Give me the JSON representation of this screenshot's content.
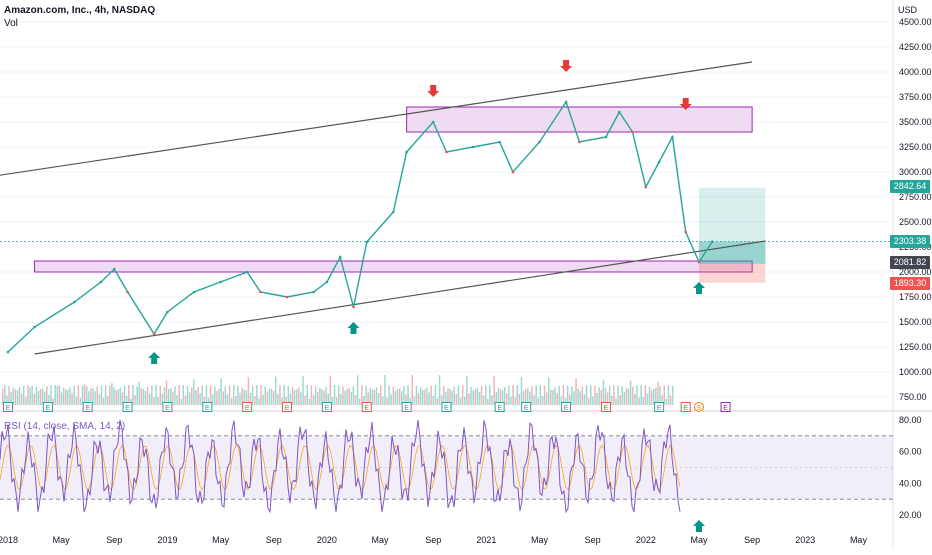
{
  "header": {
    "symbol": "Amazon.com, Inc., 4h, NASDAQ",
    "volume_label": "Vol",
    "currency": "USD"
  },
  "rsi_pane": {
    "label": "RSI (14, close, SMA, 14, 2)",
    "y_ticks": [
      "80.00",
      "60.00",
      "40.00",
      "20.00"
    ],
    "band_upper": 70,
    "band_lower": 30,
    "band_color": "#7e57c2"
  },
  "price_labels": [
    {
      "text": "2842.64",
      "color": "#26a69a"
    },
    {
      "text": "2303.38",
      "color": "#26a69a"
    },
    {
      "text": "2081.82",
      "color": "#434651"
    },
    {
      "text": "1893.30",
      "color": "#ef5350"
    }
  ],
  "colors": {
    "up": "#26a69a",
    "down": "#ef5350",
    "zone_fill": "#e1bee7",
    "zone_stroke": "#9c27b0",
    "trendline": "#555555",
    "rsi_line": "#7e57c2",
    "rsi_ma": "#f5a623"
  },
  "chart_data": {
    "type": "line",
    "y_ticks": [
      "4500.00",
      "4250.00",
      "4000.00",
      "3750.00",
      "3500.00",
      "3250.00",
      "3000.00",
      "2750.00",
      "2500.00",
      "2250.00",
      "2000.00",
      "1750.00",
      "1500.00",
      "1250.00",
      "1000.00",
      "750.00"
    ],
    "x_ticks": [
      "2018",
      "May",
      "Sep",
      "2019",
      "May",
      "Sep",
      "2020",
      "May",
      "Sep",
      "2021",
      "May",
      "Sep",
      "2022",
      "May",
      "Sep",
      "2023",
      "May"
    ],
    "ylim": [
      750,
      4500
    ],
    "series": [
      {
        "name": "",
        "x": [
          "2018-01",
          "2018-03",
          "2018-06",
          "2018-08",
          "2018-09",
          "2018-10",
          "2018-12",
          "2019-01",
          "2019-03",
          "2019-05",
          "2019-07",
          "2019-08",
          "2019-10",
          "2019-12",
          "2020-01",
          "2020-02",
          "2020-03",
          "2020-04",
          "2020-06",
          "2020-07",
          "2020-09",
          "2020-10",
          "2020-12",
          "2021-02",
          "2021-03",
          "2021-05",
          "2021-07",
          "2021-08",
          "2021-10",
          "2021-11",
          "2021-12",
          "2022-01",
          "2022-02",
          "2022-03",
          "2022-04",
          "2022-05",
          "2022-06"
        ],
        "values": [
          1200,
          1450,
          1700,
          1900,
          2030,
          1800,
          1380,
          1600,
          1800,
          1900,
          2000,
          1800,
          1750,
          1800,
          1900,
          2150,
          1650,
          2300,
          2600,
          3200,
          3500,
          3200,
          3250,
          3300,
          3000,
          3300,
          3700,
          3300,
          3350,
          3600,
          3400,
          2850,
          3100,
          3350,
          2400,
          2100,
          2303
        ]
      }
    ],
    "zones": [
      {
        "x_start": "2020-07",
        "x_end": "2022-09",
        "low": 3400,
        "high": 3650
      },
      {
        "x_start": "2018-03",
        "x_end": "2022-09",
        "low": 2000,
        "high": 2110
      }
    ],
    "trendlines": [
      {
        "x1": "2017-12",
        "y1": 2960,
        "x2": "2022-09",
        "y2": 4100
      },
      {
        "x1": "2018-03",
        "y1": 1180,
        "x2": "2022-10",
        "y2": 2310
      }
    ],
    "position": {
      "x_start": "2022-05",
      "x_end": "2022-10",
      "target": 2842.64,
      "entry": 2081.82,
      "stop": 1893.3,
      "current": 2303.38
    },
    "arrows_down": [
      {
        "x": "2020-09",
        "y": 3750
      },
      {
        "x": "2021-07",
        "y": 4000
      },
      {
        "x": "2022-04",
        "y": 3620
      }
    ],
    "arrows_up": [
      {
        "x": "2018-12",
        "y": 1200
      },
      {
        "x": "2020-03",
        "y": 1500
      },
      {
        "x": "2022-05",
        "y": 1900
      }
    ],
    "earnings_markers": [
      {
        "x": "2018-01",
        "kind": "E",
        "result": "up"
      },
      {
        "x": "2018-04",
        "kind": "E",
        "result": "up"
      },
      {
        "x": "2018-07",
        "kind": "E",
        "result": "up"
      },
      {
        "x": "2018-10",
        "kind": "E",
        "result": "up"
      },
      {
        "x": "2019-01",
        "kind": "E",
        "result": "up"
      },
      {
        "x": "2019-04",
        "kind": "E",
        "result": "up"
      },
      {
        "x": "2019-07",
        "kind": "E",
        "result": "down"
      },
      {
        "x": "2019-10",
        "kind": "E",
        "result": "down"
      },
      {
        "x": "2020-01",
        "kind": "E",
        "result": "up"
      },
      {
        "x": "2020-04",
        "kind": "E",
        "result": "down"
      },
      {
        "x": "2020-07",
        "kind": "E",
        "result": "up"
      },
      {
        "x": "2020-10",
        "kind": "E",
        "result": "up"
      },
      {
        "x": "2021-02",
        "kind": "E",
        "result": "up"
      },
      {
        "x": "2021-04",
        "kind": "E",
        "result": "up"
      },
      {
        "x": "2021-07",
        "kind": "E",
        "result": "up"
      },
      {
        "x": "2021-10",
        "kind": "E",
        "result": "down"
      },
      {
        "x": "2022-02",
        "kind": "E",
        "result": "up"
      },
      {
        "x": "2022-04",
        "kind": "E",
        "result": "down"
      },
      {
        "x": "2022-05",
        "kind": "S",
        "result": "split"
      },
      {
        "x": "2022-07",
        "kind": "E",
        "result": "future"
      }
    ],
    "rsi_arrow_up": {
      "x": "2022-05"
    }
  }
}
